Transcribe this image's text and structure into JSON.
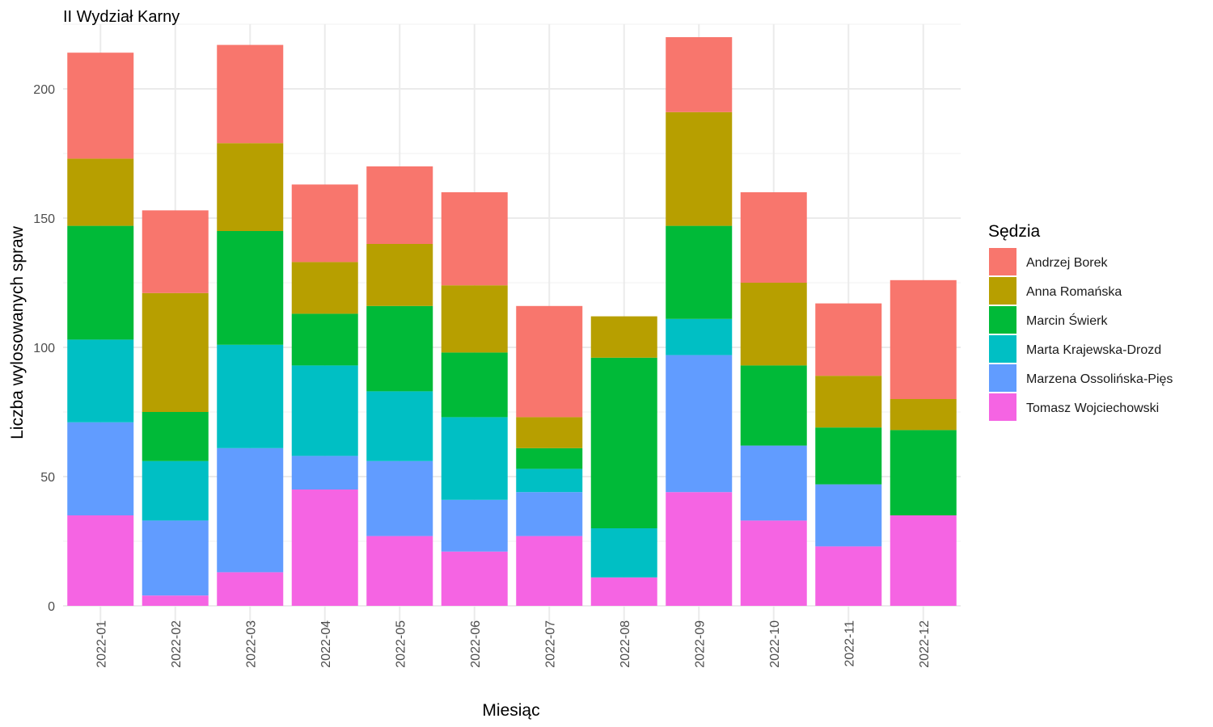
{
  "chart_data": {
    "type": "bar",
    "stacked": true,
    "title": "II Wydział Karny",
    "xlabel": "Miesiąc",
    "ylabel": "Liczba wylosowanych spraw",
    "ylim": [
      0,
      225
    ],
    "yticks": [
      0,
      50,
      100,
      150,
      200
    ],
    "grid": true,
    "legend_title": "Sędzia",
    "legend_position": "right",
    "categories": [
      "2022-01",
      "2022-02",
      "2022-03",
      "2022-04",
      "2022-05",
      "2022-06",
      "2022-07",
      "2022-08",
      "2022-09",
      "2022-10",
      "2022-11",
      "2022-12"
    ],
    "series": [
      {
        "name": "Tomasz Wojciechowski",
        "color": "#F564E3",
        "values": [
          35,
          4,
          13,
          45,
          27,
          21,
          27,
          11,
          44,
          33,
          23,
          35
        ]
      },
      {
        "name": "Marzena Ossolińska-Pięs",
        "color": "#619CFF",
        "values": [
          36,
          29,
          48,
          13,
          29,
          20,
          17,
          0,
          53,
          29,
          24,
          0
        ]
      },
      {
        "name": "Marta Krajewska-Drozd",
        "color": "#00BFC4",
        "values": [
          32,
          23,
          40,
          35,
          27,
          32,
          9,
          19,
          14,
          0,
          0,
          0
        ]
      },
      {
        "name": "Marcin Świerk",
        "color": "#00BA38",
        "values": [
          44,
          19,
          44,
          20,
          33,
          25,
          8,
          66,
          36,
          31,
          22,
          33
        ]
      },
      {
        "name": "Anna Romańska",
        "color": "#B79F00",
        "values": [
          26,
          46,
          34,
          20,
          24,
          26,
          12,
          16,
          44,
          32,
          20,
          12
        ]
      },
      {
        "name": "Andrzej Borek",
        "color": "#F8766D",
        "values": [
          41,
          32,
          38,
          30,
          30,
          36,
          43,
          0,
          29,
          35,
          28,
          46
        ]
      }
    ],
    "legend_order": [
      "Andrzej Borek",
      "Anna Romańska",
      "Marcin Świerk",
      "Marta Krajewska-Drozd",
      "Marzena Ossolińska-Pięs",
      "Tomasz Wojciechowski"
    ]
  }
}
